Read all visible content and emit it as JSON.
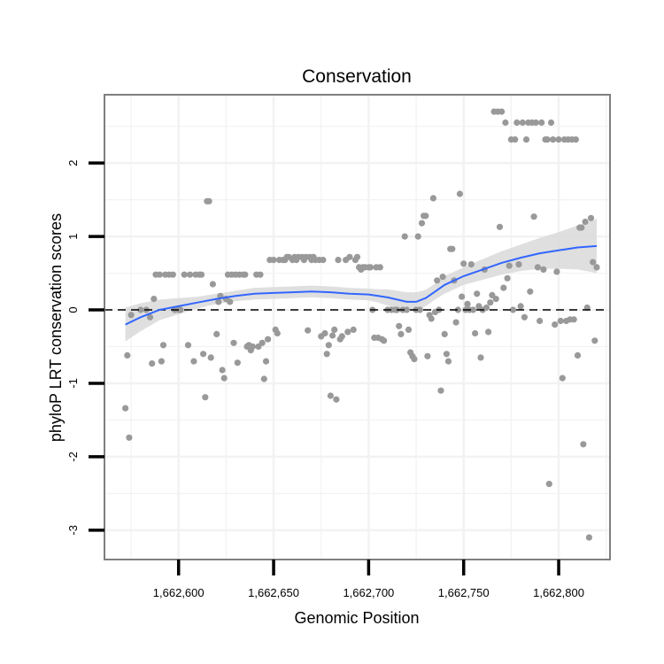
{
  "chart_data": {
    "type": "scatter",
    "title": "Conservation",
    "xlabel": "Genomic Position",
    "ylabel": "phyloP LRT conservation scores",
    "xlim": [
      1662561,
      1662827
    ],
    "ylim": [
      -3.4,
      2.93
    ],
    "x_ticks": [
      1662600,
      1662650,
      1662700,
      1662750,
      1662800
    ],
    "x_tick_labels": [
      "1,662,600",
      "1,662,650",
      "1,662,700",
      "1,662,750",
      "1,662,800"
    ],
    "y_ticks": [
      -3,
      -2,
      -1,
      0,
      1,
      2
    ],
    "y_tick_labels": [
      "-3",
      "-2",
      "-1",
      "0",
      "1",
      "2"
    ],
    "reference_line": {
      "y": 0,
      "style": "dashed"
    },
    "colors": {
      "points": "#999999",
      "smooth": "#3366FF",
      "ribbon": "#d9d9d9",
      "panel_border": "#7f7f7f",
      "grid": "#f2f2f2"
    },
    "points": [
      {
        "x": 1662572,
        "y": -1.34
      },
      {
        "x": 1662573,
        "y": -0.62
      },
      {
        "x": 1662574,
        "y": -1.74
      },
      {
        "x": 1662575,
        "y": -0.07
      },
      {
        "x": 1662580,
        "y": 0.0
      },
      {
        "x": 1662583,
        "y": 0.0
      },
      {
        "x": 1662585,
        "y": -0.1
      },
      {
        "x": 1662586,
        "y": -0.73
      },
      {
        "x": 1662587,
        "y": 0.15
      },
      {
        "x": 1662588,
        "y": 0.48
      },
      {
        "x": 1662590,
        "y": 0.48
      },
      {
        "x": 1662591,
        "y": -0.7
      },
      {
        "x": 1662592,
        "y": -0.48
      },
      {
        "x": 1662593,
        "y": 0.48
      },
      {
        "x": 1662595,
        "y": 0.48
      },
      {
        "x": 1662597,
        "y": 0.48
      },
      {
        "x": 1662598,
        "y": 0.0
      },
      {
        "x": 1662600,
        "y": 0.0
      },
      {
        "x": 1662601,
        "y": 0.0
      },
      {
        "x": 1662603,
        "y": 0.48
      },
      {
        "x": 1662605,
        "y": -0.48
      },
      {
        "x": 1662606,
        "y": 0.48
      },
      {
        "x": 1662608,
        "y": -0.7
      },
      {
        "x": 1662609,
        "y": 0.48
      },
      {
        "x": 1662611,
        "y": 0.48
      },
      {
        "x": 1662612,
        "y": 0.48
      },
      {
        "x": 1662613,
        "y": -0.6
      },
      {
        "x": 1662614,
        "y": -1.19
      },
      {
        "x": 1662615,
        "y": 1.48
      },
      {
        "x": 1662616,
        "y": 1.48
      },
      {
        "x": 1662617,
        "y": -0.65
      },
      {
        "x": 1662618,
        "y": 0.35
      },
      {
        "x": 1662620,
        "y": -0.33
      },
      {
        "x": 1662621,
        "y": 0.11
      },
      {
        "x": 1662622,
        "y": 0.19
      },
      {
        "x": 1662623,
        "y": -0.82
      },
      {
        "x": 1662624,
        "y": -0.93
      },
      {
        "x": 1662625,
        "y": 0.15
      },
      {
        "x": 1662626,
        "y": 0.48
      },
      {
        "x": 1662627,
        "y": 0.11
      },
      {
        "x": 1662628,
        "y": 0.48
      },
      {
        "x": 1662629,
        "y": -0.45
      },
      {
        "x": 1662630,
        "y": 0.48
      },
      {
        "x": 1662631,
        "y": -0.72
      },
      {
        "x": 1662632,
        "y": 0.48
      },
      {
        "x": 1662634,
        "y": 0.48
      },
      {
        "x": 1662635,
        "y": 0.48
      },
      {
        "x": 1662636,
        "y": -0.5
      },
      {
        "x": 1662637,
        "y": -0.48
      },
      {
        "x": 1662638,
        "y": -0.55
      },
      {
        "x": 1662639,
        "y": -0.5
      },
      {
        "x": 1662641,
        "y": 0.48
      },
      {
        "x": 1662642,
        "y": -0.5
      },
      {
        "x": 1662643,
        "y": 0.48
      },
      {
        "x": 1662644,
        "y": -0.45
      },
      {
        "x": 1662645,
        "y": -0.94
      },
      {
        "x": 1662646,
        "y": -0.7
      },
      {
        "x": 1662647,
        "y": -0.4
      },
      {
        "x": 1662648,
        "y": 0.68
      },
      {
        "x": 1662650,
        "y": 0.68
      },
      {
        "x": 1662651,
        "y": -0.27
      },
      {
        "x": 1662652,
        "y": -0.32
      },
      {
        "x": 1662653,
        "y": 0.68
      },
      {
        "x": 1662655,
        "y": 0.68
      },
      {
        "x": 1662656,
        "y": 0.68
      },
      {
        "x": 1662657,
        "y": 0.72
      },
      {
        "x": 1662658,
        "y": 0.72
      },
      {
        "x": 1662660,
        "y": 0.68
      },
      {
        "x": 1662661,
        "y": 0.72
      },
      {
        "x": 1662662,
        "y": 0.68
      },
      {
        "x": 1662663,
        "y": 0.72
      },
      {
        "x": 1662665,
        "y": 0.72
      },
      {
        "x": 1662666,
        "y": 0.68
      },
      {
        "x": 1662667,
        "y": 0.72
      },
      {
        "x": 1662668,
        "y": -0.28
      },
      {
        "x": 1662669,
        "y": 0.72
      },
      {
        "x": 1662670,
        "y": 0.68
      },
      {
        "x": 1662671,
        "y": 0.72
      },
      {
        "x": 1662672,
        "y": 0.68
      },
      {
        "x": 1662674,
        "y": 0.68
      },
      {
        "x": 1662675,
        "y": -0.36
      },
      {
        "x": 1662676,
        "y": 0.68
      },
      {
        "x": 1662677,
        "y": -0.32
      },
      {
        "x": 1662678,
        "y": -0.6
      },
      {
        "x": 1662679,
        "y": -0.48
      },
      {
        "x": 1662680,
        "y": -1.17
      },
      {
        "x": 1662681,
        "y": -0.35
      },
      {
        "x": 1662682,
        "y": -0.27
      },
      {
        "x": 1662683,
        "y": -1.22
      },
      {
        "x": 1662684,
        "y": 0.68
      },
      {
        "x": 1662685,
        "y": -0.4
      },
      {
        "x": 1662686,
        "y": -0.36
      },
      {
        "x": 1662688,
        "y": 0.68
      },
      {
        "x": 1662689,
        "y": -0.3
      },
      {
        "x": 1662690,
        "y": 0.72
      },
      {
        "x": 1662692,
        "y": -0.27
      },
      {
        "x": 1662693,
        "y": 0.68
      },
      {
        "x": 1662694,
        "y": 0.72
      },
      {
        "x": 1662695,
        "y": 0.58
      },
      {
        "x": 1662696,
        "y": 0.55
      },
      {
        "x": 1662697,
        "y": 0.58
      },
      {
        "x": 1662698,
        "y": 0.58
      },
      {
        "x": 1662700,
        "y": 0.58
      },
      {
        "x": 1662701,
        "y": 0.58
      },
      {
        "x": 1662702,
        "y": 0.0
      },
      {
        "x": 1662703,
        "y": -0.38
      },
      {
        "x": 1662704,
        "y": 0.58
      },
      {
        "x": 1662705,
        "y": -0.38
      },
      {
        "x": 1662706,
        "y": 0.58
      },
      {
        "x": 1662707,
        "y": -0.4
      },
      {
        "x": 1662708,
        "y": -0.42
      },
      {
        "x": 1662710,
        "y": 0.0
      },
      {
        "x": 1662712,
        "y": 0.0
      },
      {
        "x": 1662714,
        "y": 0.0
      },
      {
        "x": 1662715,
        "y": 0.0
      },
      {
        "x": 1662716,
        "y": -0.22
      },
      {
        "x": 1662717,
        "y": -0.33
      },
      {
        "x": 1662718,
        "y": 0.0
      },
      {
        "x": 1662719,
        "y": 1.0
      },
      {
        "x": 1662720,
        "y": 0.0
      },
      {
        "x": 1662721,
        "y": -0.27
      },
      {
        "x": 1662722,
        "y": -0.58
      },
      {
        "x": 1662723,
        "y": -0.63
      },
      {
        "x": 1662724,
        "y": -0.67
      },
      {
        "x": 1662725,
        "y": 0.0
      },
      {
        "x": 1662726,
        "y": 1.0
      },
      {
        "x": 1662727,
        "y": 0.0
      },
      {
        "x": 1662728,
        "y": 1.18
      },
      {
        "x": 1662729,
        "y": 1.28
      },
      {
        "x": 1662730,
        "y": 1.28
      },
      {
        "x": 1662731,
        "y": -0.63
      },
      {
        "x": 1662732,
        "y": -0.07
      },
      {
        "x": 1662733,
        "y": -0.12
      },
      {
        "x": 1662734,
        "y": 1.52
      },
      {
        "x": 1662735,
        "y": -0.03
      },
      {
        "x": 1662736,
        "y": 0.4
      },
      {
        "x": 1662737,
        "y": 0.0
      },
      {
        "x": 1662738,
        "y": -1.1
      },
      {
        "x": 1662739,
        "y": 0.45
      },
      {
        "x": 1662740,
        "y": -0.33
      },
      {
        "x": 1662741,
        "y": -0.6
      },
      {
        "x": 1662742,
        "y": -0.7
      },
      {
        "x": 1662743,
        "y": 0.83
      },
      {
        "x": 1662744,
        "y": 0.83
      },
      {
        "x": 1662745,
        "y": 0.4
      },
      {
        "x": 1662746,
        "y": -0.17
      },
      {
        "x": 1662747,
        "y": 0.0
      },
      {
        "x": 1662748,
        "y": 1.58
      },
      {
        "x": 1662749,
        "y": 0.18
      },
      {
        "x": 1662750,
        "y": 0.63
      },
      {
        "x": 1662751,
        "y": 0.0
      },
      {
        "x": 1662752,
        "y": 0.08
      },
      {
        "x": 1662753,
        "y": 0.0
      },
      {
        "x": 1662754,
        "y": 0.62
      },
      {
        "x": 1662755,
        "y": 0.0
      },
      {
        "x": 1662756,
        "y": -0.32
      },
      {
        "x": 1662757,
        "y": 0.22
      },
      {
        "x": 1662758,
        "y": 0.05
      },
      {
        "x": 1662759,
        "y": -0.65
      },
      {
        "x": 1662760,
        "y": 0.0
      },
      {
        "x": 1662761,
        "y": 0.55
      },
      {
        "x": 1662762,
        "y": 0.03
      },
      {
        "x": 1662763,
        "y": -0.3
      },
      {
        "x": 1662764,
        "y": 0.1
      },
      {
        "x": 1662765,
        "y": 0.2
      },
      {
        "x": 1662766,
        "y": 2.7
      },
      {
        "x": 1662767,
        "y": 0.15
      },
      {
        "x": 1662768,
        "y": 2.7
      },
      {
        "x": 1662769,
        "y": 1.13
      },
      {
        "x": 1662770,
        "y": 2.7
      },
      {
        "x": 1662771,
        "y": 0.3
      },
      {
        "x": 1662772,
        "y": 2.55
      },
      {
        "x": 1662773,
        "y": 0.43
      },
      {
        "x": 1662774,
        "y": 0.6
      },
      {
        "x": 1662775,
        "y": 2.32
      },
      {
        "x": 1662776,
        "y": 0.0
      },
      {
        "x": 1662777,
        "y": 2.32
      },
      {
        "x": 1662778,
        "y": 2.55
      },
      {
        "x": 1662779,
        "y": 0.62
      },
      {
        "x": 1662780,
        "y": 0.05
      },
      {
        "x": 1662781,
        "y": 2.55
      },
      {
        "x": 1662782,
        "y": -0.1
      },
      {
        "x": 1662783,
        "y": 2.32
      },
      {
        "x": 1662784,
        "y": 2.55
      },
      {
        "x": 1662785,
        "y": 0.25
      },
      {
        "x": 1662786,
        "y": 2.55
      },
      {
        "x": 1662787,
        "y": 1.27
      },
      {
        "x": 1662788,
        "y": 2.55
      },
      {
        "x": 1662789,
        "y": 0.58
      },
      {
        "x": 1662790,
        "y": -0.15
      },
      {
        "x": 1662791,
        "y": 2.55
      },
      {
        "x": 1662792,
        "y": 0.55
      },
      {
        "x": 1662793,
        "y": 2.32
      },
      {
        "x": 1662794,
        "y": 2.32
      },
      {
        "x": 1662795,
        "y": -2.37
      },
      {
        "x": 1662796,
        "y": 2.55
      },
      {
        "x": 1662797,
        "y": 2.32
      },
      {
        "x": 1662798,
        "y": -0.2
      },
      {
        "x": 1662799,
        "y": 0.52
      },
      {
        "x": 1662800,
        "y": 2.32
      },
      {
        "x": 1662801,
        "y": -0.15
      },
      {
        "x": 1662802,
        "y": -0.93
      },
      {
        "x": 1662803,
        "y": 2.32
      },
      {
        "x": 1662804,
        "y": -0.15
      },
      {
        "x": 1662805,
        "y": 2.32
      },
      {
        "x": 1662806,
        "y": -0.13
      },
      {
        "x": 1662807,
        "y": 2.32
      },
      {
        "x": 1662808,
        "y": -0.13
      },
      {
        "x": 1662809,
        "y": 2.32
      },
      {
        "x": 1662810,
        "y": -0.62
      },
      {
        "x": 1662811,
        "y": 1.12
      },
      {
        "x": 1662812,
        "y": 1.12
      },
      {
        "x": 1662813,
        "y": -1.83
      },
      {
        "x": 1662814,
        "y": 1.2
      },
      {
        "x": 1662815,
        "y": 0.03
      },
      {
        "x": 1662816,
        "y": -3.1
      },
      {
        "x": 1662817,
        "y": 1.25
      },
      {
        "x": 1662818,
        "y": 0.65
      },
      {
        "x": 1662819,
        "y": -0.42
      },
      {
        "x": 1662820,
        "y": 0.58
      }
    ],
    "smooth": {
      "method": "loess",
      "x": [
        1662572,
        1662580,
        1662590,
        1662600,
        1662610,
        1662620,
        1662630,
        1662640,
        1662650,
        1662660,
        1662670,
        1662680,
        1662690,
        1662700,
        1662705,
        1662710,
        1662715,
        1662720,
        1662725,
        1662730,
        1662735,
        1662740,
        1662745,
        1662750,
        1662760,
        1662770,
        1662780,
        1662790,
        1662800,
        1662810,
        1662820
      ],
      "y": [
        -0.2,
        -0.1,
        0.0,
        0.05,
        0.1,
        0.15,
        0.19,
        0.22,
        0.23,
        0.24,
        0.25,
        0.24,
        0.22,
        0.21,
        0.19,
        0.17,
        0.14,
        0.11,
        0.11,
        0.16,
        0.25,
        0.34,
        0.4,
        0.46,
        0.55,
        0.64,
        0.71,
        0.77,
        0.81,
        0.85,
        0.87
      ],
      "lower": [
        -0.43,
        -0.29,
        -0.14,
        -0.06,
        0.02,
        0.08,
        0.12,
        0.14,
        0.15,
        0.16,
        0.17,
        0.16,
        0.14,
        0.13,
        0.1,
        0.06,
        0.02,
        -0.02,
        -0.02,
        0.05,
        0.14,
        0.22,
        0.28,
        0.34,
        0.41,
        0.48,
        0.53,
        0.56,
        0.56,
        0.55,
        0.5
      ],
      "upper": [
        0.03,
        0.09,
        0.14,
        0.16,
        0.18,
        0.22,
        0.26,
        0.3,
        0.31,
        0.32,
        0.33,
        0.32,
        0.3,
        0.29,
        0.28,
        0.28,
        0.26,
        0.24,
        0.24,
        0.27,
        0.36,
        0.46,
        0.52,
        0.58,
        0.69,
        0.8,
        0.89,
        0.98,
        1.06,
        1.15,
        1.24
      ]
    }
  }
}
